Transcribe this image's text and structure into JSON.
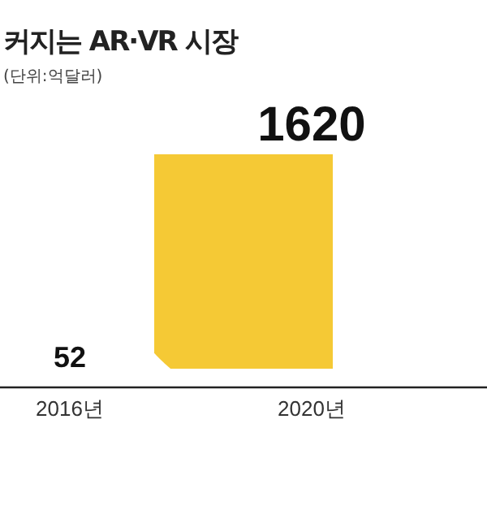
{
  "chart_data": {
    "type": "other",
    "title": "커지는 AR·VR 시장",
    "subtitle": "(단위:억달러)",
    "categories": [
      "2016년",
      "2020년"
    ],
    "values": [
      52,
      1620
    ],
    "color": "#f5c935",
    "data_labels": true
  }
}
